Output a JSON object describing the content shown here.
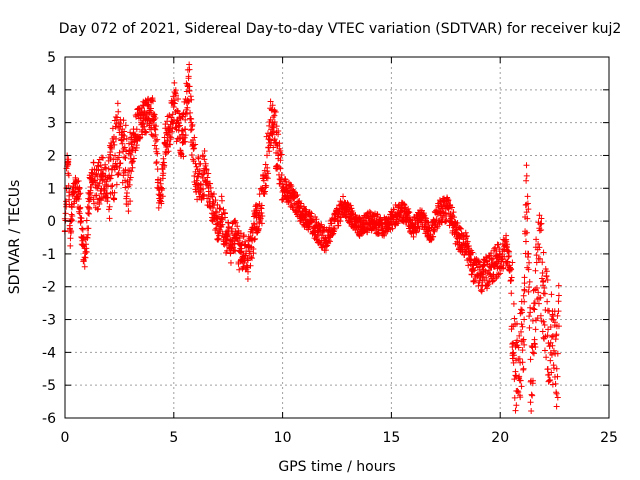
{
  "chart_data": {
    "type": "scatter",
    "title": "Day 072 of 2021, Sidereal Day-to-day VTEC variation (SDTVAR) for receiver kuj2",
    "xlabel": "GPS time / hours",
    "ylabel": "SDTVAR / TECUs",
    "xlim": [
      0,
      25
    ],
    "ylim": [
      -6,
      5
    ],
    "x_ticks": [
      0,
      5,
      10,
      15,
      20,
      25
    ],
    "y_ticks": [
      -6,
      -5,
      -4,
      -3,
      -2,
      -1,
      0,
      1,
      2,
      3,
      4,
      5
    ],
    "grid": true,
    "marker": "+",
    "series_color": "#ff0000",
    "series": [
      {
        "name": "SDTVAR",
        "trace": [
          [
            0.0,
            -0.3
          ],
          [
            0.05,
            0.6
          ],
          [
            0.1,
            2.0
          ],
          [
            0.15,
            1.8
          ],
          [
            0.2,
            0.5
          ],
          [
            0.25,
            -0.3
          ],
          [
            0.3,
            0.2
          ],
          [
            0.4,
            0.9
          ],
          [
            0.5,
            1.2
          ],
          [
            0.6,
            0.9
          ],
          [
            0.7,
            0.4
          ],
          [
            0.8,
            -0.6
          ],
          [
            0.9,
            -1.1
          ],
          [
            1.0,
            -0.5
          ],
          [
            1.1,
            0.6
          ],
          [
            1.2,
            1.3
          ],
          [
            1.3,
            1.2
          ],
          [
            1.5,
            1.0
          ],
          [
            1.7,
            1.4
          ],
          [
            1.9,
            1.1
          ],
          [
            2.1,
            1.3
          ],
          [
            2.3,
            2.0
          ],
          [
            2.5,
            2.7
          ],
          [
            2.7,
            2.2
          ],
          [
            2.9,
            1.4
          ],
          [
            3.1,
            2.2
          ],
          [
            3.3,
            2.8
          ],
          [
            3.5,
            3.0
          ],
          [
            3.7,
            3.1
          ],
          [
            3.9,
            3.3
          ],
          [
            4.1,
            3.1
          ],
          [
            4.2,
            2.2
          ],
          [
            4.3,
            1.0
          ],
          [
            4.4,
            0.7
          ],
          [
            4.5,
            1.3
          ],
          [
            4.6,
            2.4
          ],
          [
            4.8,
            2.8
          ],
          [
            5.0,
            3.6
          ],
          [
            5.2,
            3.0
          ],
          [
            5.4,
            2.4
          ],
          [
            5.6,
            3.6
          ],
          [
            5.7,
            4.1
          ],
          [
            5.8,
            3.0
          ],
          [
            5.9,
            2.2
          ],
          [
            6.0,
            1.5
          ],
          [
            6.2,
            1.0
          ],
          [
            6.4,
            1.6
          ],
          [
            6.6,
            0.9
          ],
          [
            6.8,
            0.4
          ],
          [
            7.0,
            -0.1
          ],
          [
            7.2,
            0.2
          ],
          [
            7.4,
            -0.4
          ],
          [
            7.6,
            -0.7
          ],
          [
            7.8,
            -0.5
          ],
          [
            8.0,
            -0.9
          ],
          [
            8.2,
            -1.0
          ],
          [
            8.4,
            -1.2
          ],
          [
            8.6,
            -0.6
          ],
          [
            8.8,
            0.1
          ],
          [
            9.0,
            0.4
          ],
          [
            9.2,
            1.4
          ],
          [
            9.4,
            2.5
          ],
          [
            9.5,
            3.4
          ],
          [
            9.6,
            2.9
          ],
          [
            9.7,
            2.4
          ],
          [
            9.8,
            2.0
          ],
          [
            9.9,
            1.6
          ],
          [
            10.0,
            1.0
          ],
          [
            10.2,
            0.9
          ],
          [
            10.5,
            0.7
          ],
          [
            10.8,
            0.3
          ],
          [
            11.0,
            0.1
          ],
          [
            11.3,
            0.0
          ],
          [
            11.6,
            -0.3
          ],
          [
            12.0,
            -0.6
          ],
          [
            12.4,
            0.0
          ],
          [
            12.8,
            0.5
          ],
          [
            13.2,
            0.1
          ],
          [
            13.6,
            -0.2
          ],
          [
            14.0,
            0.0
          ],
          [
            14.4,
            -0.1
          ],
          [
            14.8,
            -0.2
          ],
          [
            15.2,
            0.2
          ],
          [
            15.6,
            0.3
          ],
          [
            16.0,
            -0.2
          ],
          [
            16.4,
            0.1
          ],
          [
            16.8,
            -0.5
          ],
          [
            17.2,
            0.3
          ],
          [
            17.6,
            0.4
          ],
          [
            18.0,
            -0.4
          ],
          [
            18.4,
            -0.7
          ],
          [
            18.8,
            -1.5
          ],
          [
            19.2,
            -1.7
          ],
          [
            19.6,
            -1.4
          ],
          [
            20.0,
            -1.1
          ],
          [
            20.3,
            -0.8
          ],
          [
            20.5,
            -1.8
          ],
          [
            20.6,
            -3.2
          ],
          [
            20.7,
            -4.7
          ],
          [
            20.9,
            -4.2
          ],
          [
            21.1,
            -3.0
          ],
          [
            21.2,
            0.5
          ],
          [
            21.3,
            -1.0
          ],
          [
            21.4,
            -4.9
          ],
          [
            21.5,
            -4.0
          ],
          [
            21.6,
            -2.5
          ],
          [
            21.8,
            -0.8
          ],
          [
            22.0,
            -2.2
          ],
          [
            22.2,
            -3.3
          ],
          [
            22.4,
            -3.8
          ],
          [
            22.6,
            -4.5
          ],
          [
            22.7,
            -3.2
          ]
        ],
        "spread": [
          [
            0,
            1.0,
            0.5
          ],
          [
            1.0,
            2.0,
            0.7
          ],
          [
            2.0,
            3.0,
            1.2
          ],
          [
            3.0,
            5.0,
            0.6
          ],
          [
            5.0,
            6.5,
            0.8
          ],
          [
            6.5,
            9.0,
            0.6
          ],
          [
            9.0,
            10.0,
            0.8
          ],
          [
            10.0,
            13.0,
            0.35
          ],
          [
            13.0,
            17.0,
            0.3
          ],
          [
            17.0,
            19.0,
            0.4
          ],
          [
            19.0,
            20.5,
            0.5
          ],
          [
            20.5,
            21.5,
            1.4
          ],
          [
            21.5,
            22.7,
            1.6
          ]
        ]
      }
    ]
  }
}
